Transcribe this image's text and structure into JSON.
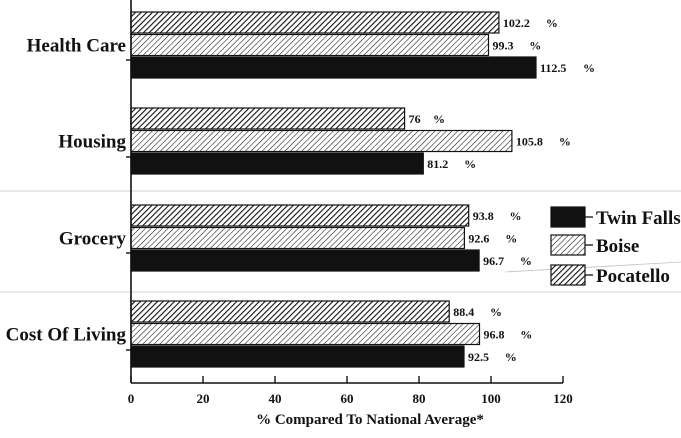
{
  "chart_data": {
    "type": "bar",
    "orientation": "horizontal",
    "categories": [
      "Health Care",
      "Housing",
      "Grocery",
      "Cost Of Living"
    ],
    "series": [
      {
        "name": "Pocatello",
        "pattern": "hatch-dense",
        "values": [
          102.2,
          76,
          93.8,
          88.4
        ]
      },
      {
        "name": "Boise",
        "pattern": "hatch-light",
        "values": [
          99.3,
          105.8,
          92.6,
          96.8
        ]
      },
      {
        "name": "Twin Falls",
        "pattern": "solid",
        "values": [
          112.5,
          81.2,
          96.7,
          92.5
        ]
      }
    ],
    "value_labels": [
      [
        "102.2",
        "99.3",
        "112.5"
      ],
      [
        "76",
        "105.8",
        "81.2"
      ],
      [
        "93.8",
        "92.6",
        "96.7"
      ],
      [
        "88.4",
        "96.8",
        "92.5"
      ]
    ],
    "value_suffix": "%",
    "xlabel": "% Compared To National Average*",
    "xlim": [
      0,
      120
    ],
    "xticks": [
      0,
      20,
      40,
      60,
      80,
      100,
      120
    ],
    "legend": {
      "placement": "right",
      "order": [
        "Twin Falls",
        "Boise",
        "Pocatello"
      ]
    },
    "colors": {
      "ink": "#111111",
      "background": "#ffffff"
    }
  }
}
